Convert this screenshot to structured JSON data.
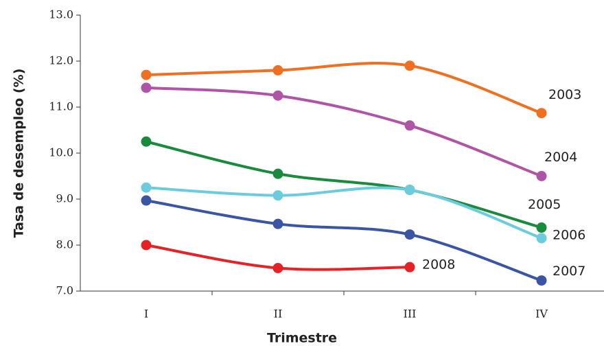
{
  "chart_data": {
    "type": "line",
    "xlabel": "Trimestre",
    "ylabel": "Tasa de desempleo (%)",
    "categories": [
      "I",
      "II",
      "III",
      "IV"
    ],
    "ylim": [
      7,
      13
    ],
    "yticks": [
      {
        "value": 7,
        "label": "7.0"
      },
      {
        "value": 8,
        "label": "8.0"
      },
      {
        "value": 9,
        "label": "9.0"
      },
      {
        "value": 10,
        "label": "10.0"
      },
      {
        "value": 11,
        "label": "11.0"
      },
      {
        "value": 12,
        "label": "12.0"
      },
      {
        "value": 13,
        "label": "13.0"
      }
    ],
    "series": [
      {
        "name": "2003",
        "color": "#f07022",
        "values": [
          11.7,
          11.8,
          11.9,
          10.87
        ]
      },
      {
        "name": "2004",
        "color": "#b054a8",
        "values": [
          11.42,
          11.25,
          10.6,
          9.5
        ]
      },
      {
        "name": "2005",
        "color": "#1a8a3c",
        "values": [
          10.25,
          9.55,
          9.2,
          8.38
        ]
      },
      {
        "name": "2006",
        "color": "#6ccbdc",
        "values": [
          9.25,
          9.08,
          9.2,
          8.15
        ]
      },
      {
        "name": "2007",
        "color": "#3a55a4",
        "values": [
          8.97,
          8.46,
          8.23,
          7.23
        ]
      },
      {
        "name": "2008",
        "color": "#e52225",
        "values": [
          8.0,
          7.5,
          7.52,
          null
        ]
      }
    ]
  }
}
